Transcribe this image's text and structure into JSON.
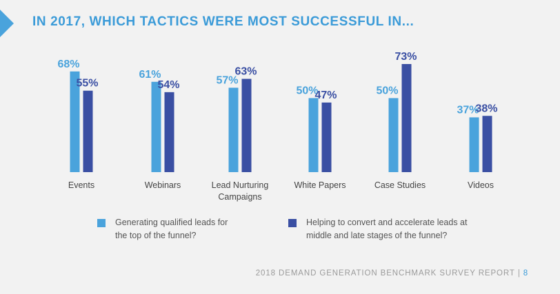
{
  "title": "IN 2017, WHICH TACTICS WERE MOST SUCCESSFUL IN...",
  "footer": {
    "report": "2018 DEMAND GENERATION BENCHMARK SURVEY REPORT",
    "separator": "|",
    "page": "8"
  },
  "colors": {
    "accent": "#3b9bd8",
    "series1": "#4aa3dc",
    "series2": "#3a4fa3"
  },
  "legend": [
    {
      "lines": [
        "Generating qualified leads for",
        "the top of the funnel?"
      ]
    },
    {
      "lines": [
        "Helping to convert and accelerate leads at",
        "middle and late stages of the funnel?"
      ]
    }
  ],
  "chart_data": {
    "type": "bar",
    "categories": [
      [
        "Events"
      ],
      [
        "Webinars"
      ],
      [
        "Lead Nurturing",
        "Campaigns"
      ],
      [
        "White Papers"
      ],
      [
        "Case Studies"
      ],
      [
        "Videos"
      ]
    ],
    "series": [
      {
        "values": [
          68,
          61,
          57,
          50,
          50,
          37
        ],
        "labels": [
          "68%",
          "61%",
          "57%",
          "50%",
          "50%",
          "37%"
        ]
      },
      {
        "values": [
          55,
          54,
          63,
          47,
          73,
          38
        ],
        "labels": [
          "55%",
          "54%",
          "63%",
          "47%",
          "73%",
          "38%"
        ]
      }
    ],
    "ylim": [
      0,
      73
    ],
    "grid": false,
    "legend_position": "bottom"
  }
}
